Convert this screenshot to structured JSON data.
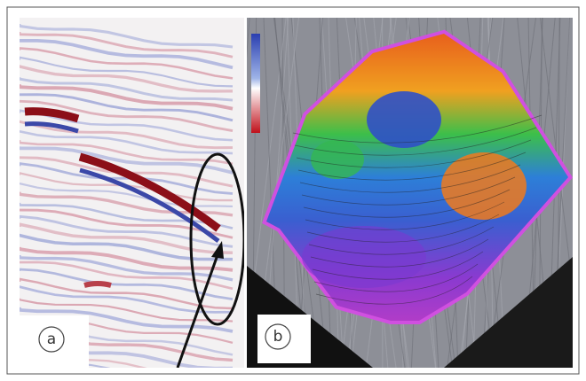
{
  "panels": [
    {
      "label": "a"
    },
    {
      "label": "b"
    }
  ]
}
